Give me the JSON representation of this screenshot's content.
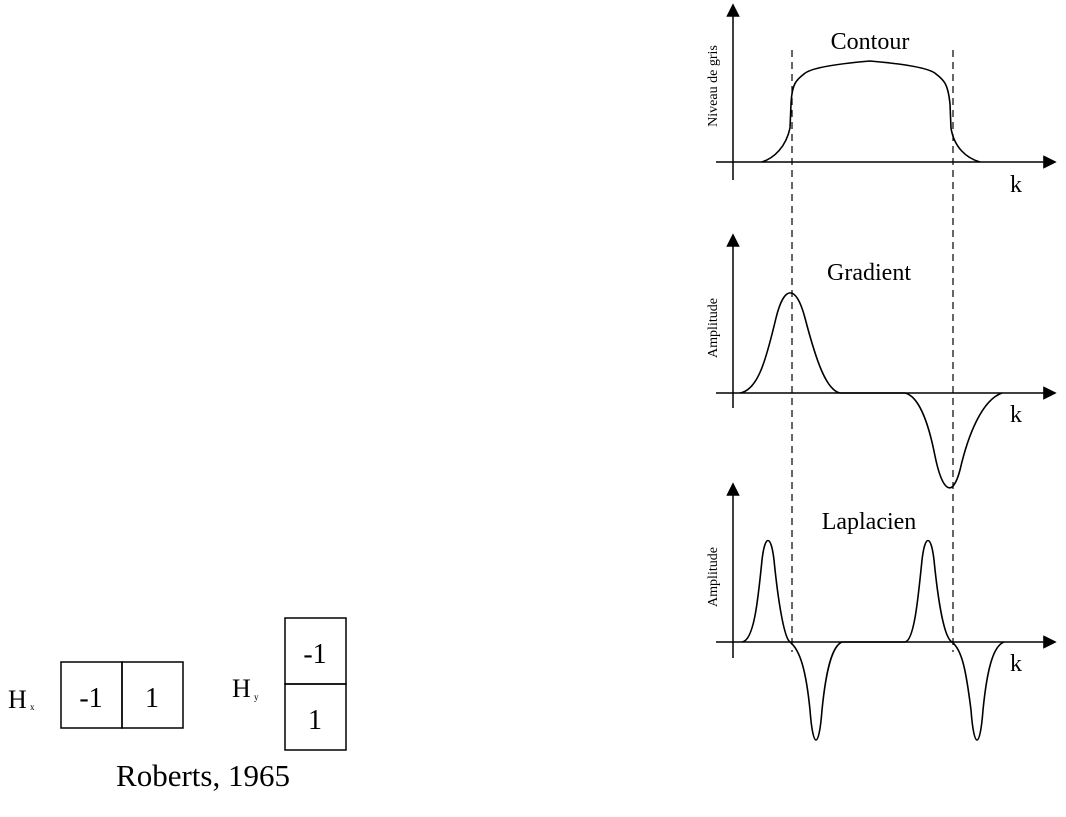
{
  "roberts": {
    "hx_label": "H",
    "hx_sub": "x",
    "hx_cells": [
      "-1",
      "1"
    ],
    "hy_label": "H",
    "hy_sub": "y",
    "hy_cells": [
      "-1",
      "1"
    ],
    "caption": "Roberts, 1965"
  },
  "panels": {
    "contour": {
      "title": "Contour",
      "ylabel": "Niveau de gris",
      "xlabel": "k"
    },
    "gradient": {
      "title": "Gradient",
      "ylabel": "Amplitude",
      "xlabel": "k"
    },
    "laplacien": {
      "title": "Laplacien",
      "ylabel": "Amplitude",
      "xlabel": "k"
    }
  }
}
